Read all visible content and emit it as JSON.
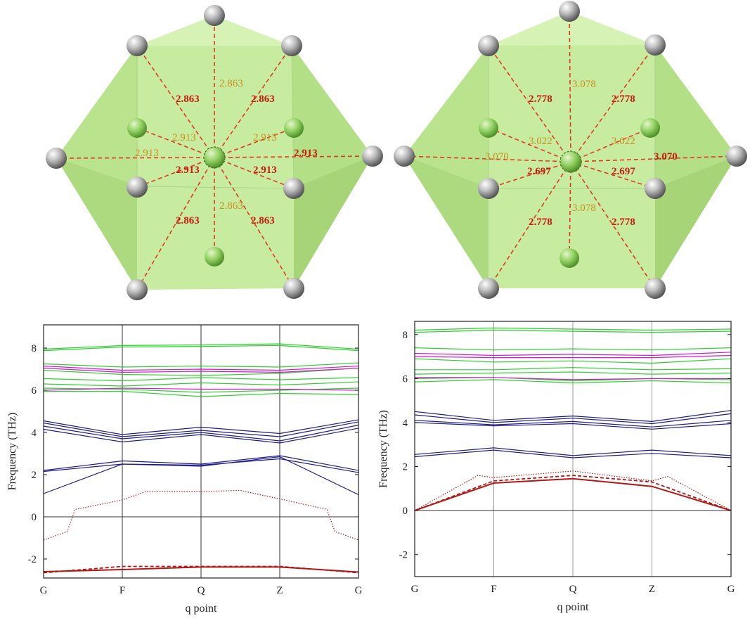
{
  "polyhedra": [
    {
      "name": "left",
      "labels_red": [
        "2.863",
        "2.863",
        "2.913",
        "2.913",
        "2.863",
        "2.863"
      ],
      "labels_orange": [
        "2.863",
        "2.913",
        "2.913",
        "2.913",
        "2.863"
      ],
      "label_bold_right": "2.913"
    },
    {
      "name": "right",
      "labels_red": [
        "2.778",
        "2.778",
        "2.697",
        "2.697",
        "2.778",
        "2.778"
      ],
      "labels_orange": [
        "3.078",
        "3.022",
        "3.022",
        "3.070",
        "3.078"
      ],
      "label_bold_right": "3.070"
    }
  ],
  "chart_data": [
    {
      "type": "line",
      "title": "",
      "xlabel": "q point",
      "ylabel": "Frequency (THz)",
      "categories": [
        "G",
        "F",
        "Q",
        "Z",
        "G"
      ],
      "yticks": [
        "8",
        "6",
        "4",
        "2",
        "0",
        "-2"
      ],
      "ylim": [
        -2.9,
        9.1
      ],
      "colors": {
        "green": "#2fcf2f",
        "magenta": "#d21ad2",
        "blue": "#1c1c8c",
        "red": "#b21818"
      },
      "series": [
        {
          "name": "green-1",
          "color": "green",
          "x": [
            0,
            1,
            2,
            3,
            4
          ],
          "values": [
            7.95,
            8.12,
            8.15,
            8.2,
            7.95
          ]
        },
        {
          "name": "green-2",
          "color": "green",
          "x": [
            0,
            1,
            2,
            3,
            4
          ],
          "values": [
            7.88,
            8.05,
            8.08,
            8.12,
            7.88
          ]
        },
        {
          "name": "green-3",
          "color": "green",
          "x": [
            0,
            1,
            2,
            3,
            4
          ],
          "values": [
            7.25,
            7.1,
            7.15,
            7.1,
            7.3
          ]
        },
        {
          "name": "green-4",
          "color": "green",
          "x": [
            0,
            1,
            2,
            3,
            4
          ],
          "values": [
            6.95,
            6.75,
            6.7,
            6.8,
            7.05
          ]
        },
        {
          "name": "green-5",
          "color": "green",
          "x": [
            0,
            1,
            2,
            3,
            4
          ],
          "values": [
            6.55,
            6.45,
            6.6,
            6.5,
            6.6
          ]
        },
        {
          "name": "green-6",
          "color": "green",
          "x": [
            0,
            1,
            2,
            3,
            4
          ],
          "values": [
            6.3,
            6.2,
            6.35,
            6.25,
            6.4
          ]
        },
        {
          "name": "green-7",
          "color": "green",
          "x": [
            0,
            1,
            2,
            3,
            4
          ],
          "values": [
            6.1,
            6.05,
            5.9,
            6.0,
            6.1
          ]
        },
        {
          "name": "green-8",
          "color": "green",
          "x": [
            0,
            1,
            2,
            3,
            4
          ],
          "values": [
            5.95,
            5.95,
            5.7,
            5.85,
            5.8
          ]
        },
        {
          "name": "magenta-1",
          "color": "magenta",
          "x": [
            0,
            1,
            2,
            3,
            4
          ],
          "values": [
            7.15,
            6.95,
            7.0,
            6.95,
            7.15
          ]
        },
        {
          "name": "magenta-2",
          "color": "magenta",
          "x": [
            0,
            1,
            2,
            3,
            4
          ],
          "values": [
            7.05,
            6.85,
            6.9,
            6.85,
            7.05
          ]
        },
        {
          "name": "magenta-3",
          "color": "magenta",
          "x": [
            0,
            1,
            2,
            3,
            4
          ],
          "values": [
            6.0,
            6.1,
            6.05,
            6.05,
            6.0
          ]
        },
        {
          "name": "blue-1",
          "color": "blue",
          "x": [
            0,
            1,
            2,
            3,
            4
          ],
          "values": [
            4.55,
            3.9,
            4.25,
            3.95,
            4.6
          ]
        },
        {
          "name": "blue-2",
          "color": "blue",
          "x": [
            0,
            1,
            2,
            3,
            4
          ],
          "values": [
            4.45,
            3.8,
            4.1,
            3.8,
            4.5
          ]
        },
        {
          "name": "blue-3",
          "color": "blue",
          "x": [
            0,
            1,
            2,
            3,
            4
          ],
          "values": [
            4.3,
            3.7,
            4.0,
            3.6,
            4.35
          ]
        },
        {
          "name": "blue-4",
          "color": "blue",
          "x": [
            0,
            1,
            2,
            3,
            4
          ],
          "values": [
            4.15,
            3.55,
            3.9,
            3.5,
            4.2
          ]
        },
        {
          "name": "blue-5",
          "color": "blue",
          "x": [
            0,
            1,
            2,
            3,
            4
          ],
          "values": [
            2.2,
            2.65,
            2.5,
            2.9,
            2.2
          ]
        },
        {
          "name": "blue-6",
          "color": "blue",
          "x": [
            0,
            1,
            2,
            3,
            4
          ],
          "values": [
            2.15,
            2.5,
            2.45,
            2.75,
            2.1
          ]
        },
        {
          "name": "blue-7",
          "color": "blue",
          "x": [
            0,
            1,
            2,
            3,
            4
          ],
          "values": [
            1.1,
            2.5,
            2.4,
            2.85,
            1.05
          ]
        },
        {
          "name": "red-dotted",
          "color": "red",
          "style": "dotted",
          "x": [
            0,
            0.3,
            0.4,
            1.0,
            1.3,
            2.0,
            2.5,
            3.0,
            3.6,
            3.7,
            4.0
          ],
          "values": [
            -1.1,
            -0.7,
            0.35,
            0.8,
            1.2,
            1.2,
            1.25,
            0.85,
            0.35,
            -0.7,
            -1.1
          ]
        },
        {
          "name": "red-dashed",
          "color": "red",
          "style": "dashed",
          "x": [
            0,
            1,
            2,
            3,
            4
          ],
          "values": [
            -2.65,
            -2.35,
            -2.35,
            -2.35,
            -2.65
          ]
        },
        {
          "name": "red-solid",
          "color": "red",
          "style": "solid",
          "x": [
            0,
            1,
            2,
            3,
            4
          ],
          "values": [
            -2.6,
            -2.5,
            -2.38,
            -2.38,
            -2.62
          ]
        }
      ]
    },
    {
      "type": "line",
      "title": "",
      "xlabel": "q point",
      "ylabel": "Frequency (THz)",
      "categories": [
        "G",
        "F",
        "Q",
        "Z",
        "G"
      ],
      "yticks": [
        "8",
        "6",
        "4",
        "2",
        "0",
        "-2"
      ],
      "ylim": [
        -3.0,
        8.6
      ],
      "colors": {
        "green": "#2fcf2f",
        "magenta": "#d21ad2",
        "blue": "#1c1c8c",
        "red": "#b21818"
      },
      "series": [
        {
          "name": "green-1",
          "color": "green",
          "x": [
            0,
            1,
            2,
            3,
            4
          ],
          "values": [
            8.2,
            8.3,
            8.25,
            8.2,
            8.25
          ]
        },
        {
          "name": "green-2",
          "color": "green",
          "x": [
            0,
            1,
            2,
            3,
            4
          ],
          "values": [
            8.1,
            8.2,
            8.15,
            8.1,
            8.15
          ]
        },
        {
          "name": "green-3",
          "color": "green",
          "x": [
            0,
            1,
            2,
            3,
            4
          ],
          "values": [
            7.4,
            7.3,
            7.35,
            7.3,
            7.4
          ]
        },
        {
          "name": "green-4",
          "color": "green",
          "x": [
            0,
            1,
            2,
            3,
            4
          ],
          "values": [
            6.9,
            6.75,
            6.8,
            6.7,
            6.9
          ]
        },
        {
          "name": "green-5",
          "color": "green",
          "x": [
            0,
            1,
            2,
            3,
            4
          ],
          "values": [
            6.4,
            6.4,
            6.5,
            6.4,
            6.45
          ]
        },
        {
          "name": "green-6",
          "color": "green",
          "x": [
            0,
            1,
            2,
            3,
            4
          ],
          "values": [
            6.2,
            6.25,
            6.3,
            6.2,
            6.25
          ]
        },
        {
          "name": "green-7",
          "color": "green",
          "x": [
            0,
            1,
            2,
            3,
            4
          ],
          "values": [
            6.0,
            6.05,
            5.9,
            6.0,
            5.95
          ]
        },
        {
          "name": "green-8",
          "color": "green",
          "x": [
            0,
            1,
            2,
            3,
            4
          ],
          "values": [
            5.85,
            5.95,
            5.8,
            5.9,
            5.8
          ]
        },
        {
          "name": "magenta-1",
          "color": "magenta",
          "x": [
            0,
            1,
            2,
            3,
            4
          ],
          "values": [
            7.15,
            7.05,
            7.1,
            7.05,
            7.2
          ]
        },
        {
          "name": "magenta-2",
          "color": "magenta",
          "x": [
            0,
            1,
            2,
            3,
            4
          ],
          "values": [
            7.0,
            6.95,
            6.95,
            6.95,
            7.05
          ]
        },
        {
          "name": "magenta-3",
          "color": "magenta",
          "x": [
            0,
            1,
            2,
            3,
            4
          ],
          "values": [
            6.05,
            6.05,
            5.95,
            6.0,
            6.0
          ]
        },
        {
          "name": "blue-1",
          "color": "blue",
          "x": [
            0,
            1,
            2,
            3,
            4
          ],
          "values": [
            4.5,
            4.1,
            4.3,
            4.05,
            4.55
          ]
        },
        {
          "name": "blue-2",
          "color": "blue",
          "x": [
            0,
            1,
            2,
            3,
            4
          ],
          "values": [
            4.35,
            4.0,
            4.2,
            3.95,
            4.4
          ]
        },
        {
          "name": "blue-3",
          "color": "blue",
          "x": [
            0,
            1,
            2,
            3,
            4
          ],
          "values": [
            4.1,
            3.9,
            4.05,
            3.8,
            4.1
          ]
        },
        {
          "name": "blue-4",
          "color": "blue",
          "x": [
            0,
            1,
            2,
            3,
            4
          ],
          "values": [
            4.0,
            3.85,
            3.95,
            3.7,
            3.95
          ]
        },
        {
          "name": "blue-5",
          "color": "blue",
          "x": [
            0,
            1,
            2,
            3,
            4
          ],
          "values": [
            2.55,
            2.85,
            2.5,
            2.75,
            2.5
          ]
        },
        {
          "name": "blue-6",
          "color": "blue",
          "x": [
            0,
            1,
            2,
            3,
            4
          ],
          "values": [
            2.45,
            2.75,
            2.4,
            2.6,
            2.4
          ]
        },
        {
          "name": "red-dotted",
          "color": "red",
          "style": "dotted",
          "x": [
            0,
            0.8,
            1.0,
            2.0,
            3.0,
            3.2,
            4.0
          ],
          "values": [
            0.0,
            1.6,
            1.5,
            1.8,
            1.35,
            1.55,
            0.0
          ]
        },
        {
          "name": "red-dashed",
          "color": "red",
          "style": "dashed",
          "x": [
            0,
            1,
            2,
            3,
            4
          ],
          "values": [
            0.0,
            1.35,
            1.6,
            1.3,
            0.0
          ]
        },
        {
          "name": "red-solid",
          "color": "red",
          "style": "solid",
          "x": [
            0,
            1,
            2,
            3,
            4
          ],
          "values": [
            0.0,
            1.25,
            1.45,
            1.1,
            0.0
          ]
        }
      ]
    }
  ]
}
